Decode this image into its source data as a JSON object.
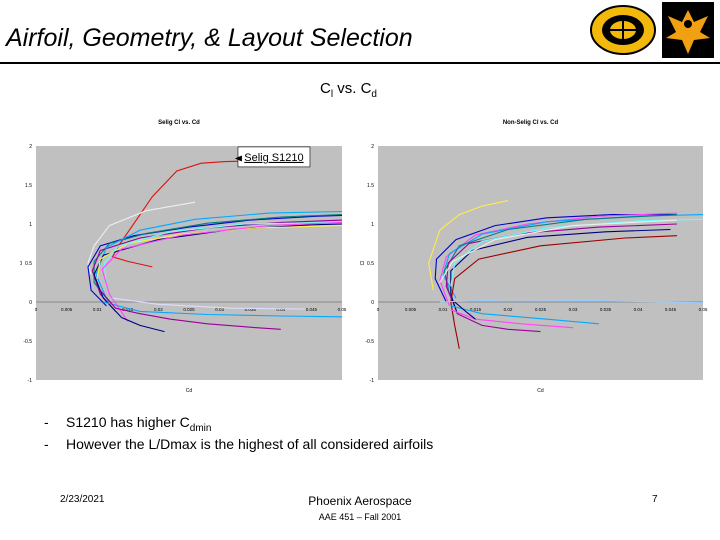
{
  "slide": {
    "title": "Airfoil, Geometry, & Layout Selection",
    "subtitle_main": "C",
    "subtitle_sub1": "l",
    "subtitle_mid": " vs. C",
    "subtitle_sub2": "d",
    "bullets": [
      {
        "dash": "-",
        "pre": "S1210 has higher C",
        "sub": "dmin",
        "post": ""
      },
      {
        "dash": "-",
        "pre": "However the L/Dmax is the highest of all considered airfoils",
        "sub": "",
        "post": ""
      }
    ],
    "footer_date": "2/23/2021",
    "footer_org": "Phoenix Aerospace",
    "footer_course": "AAE 451 – Fall 2001",
    "page_number": "7"
  },
  "chart_data": [
    {
      "type": "line",
      "title": "Selig Cl vs. Cd",
      "xlabel": "Cd",
      "ylabel": "Cl",
      "xlim": [
        0,
        0.05
      ],
      "ylim": [
        -1,
        2
      ],
      "x_ticks": [
        "0",
        "0.005",
        "0.01",
        "0.015",
        "0.02",
        "0.025",
        "0.03",
        "0.035",
        "0.04",
        "0.045",
        "0.05"
      ],
      "y_ticks": [
        "2",
        "1.5",
        "1",
        "0.5",
        "0",
        "-0.5",
        "-1"
      ],
      "annotation": "Selig S1210",
      "background": "#c0c0c0",
      "series": [
        {
          "color": "#dd1111",
          "points": [
            [
              0.019,
              0.45
            ],
            [
              0.015,
              0.52
            ],
            [
              0.0125,
              0.58
            ],
            [
              0.0135,
              0.72
            ],
            [
              0.0155,
              0.95
            ],
            [
              0.019,
              1.35
            ],
            [
              0.023,
              1.68
            ],
            [
              0.027,
              1.78
            ],
            [
              0.031,
              1.8
            ],
            [
              0.036,
              1.81
            ]
          ]
        },
        {
          "color": "#eeeeee",
          "points": [
            [
              0.009,
              0.35
            ],
            [
              0.0085,
              0.5
            ],
            [
              0.0095,
              0.72
            ],
            [
              0.012,
              0.98
            ],
            [
              0.018,
              1.17
            ],
            [
              0.026,
              1.28
            ]
          ]
        },
        {
          "color": "#0000cc",
          "points": [
            [
              0.0115,
              -0.05
            ],
            [
              0.009,
              0.15
            ],
            [
              0.0085,
              0.45
            ],
            [
              0.0105,
              0.72
            ],
            [
              0.016,
              0.85
            ],
            [
              0.025,
              0.96
            ],
            [
              0.035,
              1.05
            ],
            [
              0.046,
              1.1
            ],
            [
              0.05,
              1.11
            ]
          ]
        },
        {
          "color": "#008080",
          "points": [
            [
              0.012,
              0.0
            ],
            [
              0.0095,
              0.25
            ],
            [
              0.0095,
              0.52
            ],
            [
              0.012,
              0.75
            ],
            [
              0.018,
              0.88
            ],
            [
              0.028,
              1.01
            ],
            [
              0.04,
              1.09
            ],
            [
              0.05,
              1.12
            ]
          ]
        },
        {
          "color": "#990099",
          "points": [
            [
              0.013,
              -0.12
            ],
            [
              0.0105,
              0.1
            ],
            [
              0.0092,
              0.4
            ],
            [
              0.0105,
              0.66
            ],
            [
              0.017,
              0.82
            ],
            [
              0.028,
              0.95
            ],
            [
              0.04,
              1.02
            ],
            [
              0.05,
              1.05
            ]
          ]
        },
        {
          "color": "#00aaff",
          "points": [
            [
              0.0115,
              0.05
            ],
            [
              0.0098,
              0.35
            ],
            [
              0.0115,
              0.7
            ],
            [
              0.017,
              0.92
            ],
            [
              0.026,
              1.06
            ],
            [
              0.038,
              1.14
            ],
            [
              0.05,
              1.16
            ]
          ]
        },
        {
          "color": "#000080",
          "points": [
            [
              0.014,
              -0.2
            ],
            [
              0.011,
              0.05
            ],
            [
              0.0095,
              0.35
            ],
            [
              0.011,
              0.6
            ],
            [
              0.02,
              0.8
            ],
            [
              0.032,
              0.93
            ],
            [
              0.045,
              0.99
            ],
            [
              0.05,
              1.0
            ]
          ]
        },
        {
          "color": "#ffee44",
          "points": [
            [
              0.01,
              0.3
            ],
            [
              0.0105,
              0.55
            ],
            [
              0.015,
              0.75
            ],
            [
              0.024,
              0.87
            ],
            [
              0.036,
              0.95
            ],
            [
              0.05,
              0.98
            ]
          ]
        },
        {
          "color": "#66ffff",
          "points": [
            [
              0.0115,
              0.2
            ],
            [
              0.0112,
              0.5
            ],
            [
              0.0135,
              0.72
            ],
            [
              0.022,
              0.9
            ],
            [
              0.034,
              1.0
            ],
            [
              0.05,
              1.02
            ]
          ]
        },
        {
          "color": "#ff44ff",
          "points": [
            [
              0.015,
              -0.25
            ],
            [
              0.012,
              0.1
            ],
            [
              0.0108,
              0.42
            ],
            [
              0.014,
              0.68
            ],
            [
              0.024,
              0.86
            ],
            [
              0.038,
              0.98
            ],
            [
              0.05,
              1.02
            ]
          ]
        },
        {
          "color": "#00aaff",
          "points": [
            [
              0.011,
              0.0
            ],
            [
              0.017,
              -0.12
            ],
            [
              0.028,
              -0.16
            ],
            [
              0.04,
              -0.18
            ],
            [
              0.05,
              -0.19
            ]
          ]
        },
        {
          "color": "#ddddff",
          "points": [
            [
              0.0125,
              0.05
            ],
            [
              0.02,
              -0.03
            ],
            [
              0.032,
              -0.08
            ],
            [
              0.044,
              -0.09
            ]
          ]
        },
        {
          "color": "#990099",
          "points": [
            [
              0.0105,
              0.15
            ],
            [
              0.013,
              -0.08
            ],
            [
              0.017,
              -0.15
            ],
            [
              0.022,
              -0.22
            ],
            [
              0.028,
              -0.28
            ],
            [
              0.036,
              -0.33
            ],
            [
              0.04,
              -0.35
            ]
          ]
        },
        {
          "color": "#000080",
          "points": [
            [
              0.014,
              -0.2
            ],
            [
              0.017,
              -0.3
            ],
            [
              0.021,
              -0.38
            ]
          ]
        }
      ]
    },
    {
      "type": "line",
      "title": "Non-Selig Cl vs. Cd",
      "xlabel": "Cd",
      "ylabel": "Cl",
      "xlim": [
        0,
        0.05
      ],
      "ylim": [
        -1,
        2
      ],
      "x_ticks": [
        "0",
        "0.005",
        "0.01",
        "0.015",
        "0.02",
        "0.025",
        "0.03",
        "0.035",
        "0.04",
        "0.045",
        "0.05"
      ],
      "y_ticks": [
        "2",
        "1.5",
        "1",
        "0.5",
        "0",
        "-0.5",
        "-1"
      ],
      "background": "#c0c0c0",
      "series": [
        {
          "color": "#ffee44",
          "points": [
            [
              0.0085,
              0.15
            ],
            [
              0.0078,
              0.5
            ],
            [
              0.0095,
              0.92
            ],
            [
              0.0125,
              1.12
            ],
            [
              0.016,
              1.23
            ],
            [
              0.02,
              1.3
            ]
          ]
        },
        {
          "color": "#0000cc",
          "points": [
            [
              0.0105,
              0.0
            ],
            [
              0.0088,
              0.3
            ],
            [
              0.009,
              0.55
            ],
            [
              0.012,
              0.8
            ],
            [
              0.018,
              0.98
            ],
            [
              0.026,
              1.08
            ],
            [
              0.036,
              1.12
            ],
            [
              0.046,
              1.12
            ]
          ]
        },
        {
          "color": "#ff44ff",
          "points": [
            [
              0.011,
              -0.05
            ],
            [
              0.0095,
              0.28
            ],
            [
              0.0105,
              0.58
            ],
            [
              0.015,
              0.86
            ],
            [
              0.023,
              1.0
            ],
            [
              0.034,
              1.1
            ],
            [
              0.046,
              1.14
            ]
          ]
        },
        {
          "color": "#00aaff",
          "points": [
            [
              0.012,
              0.05
            ],
            [
              0.01,
              0.35
            ],
            [
              0.011,
              0.62
            ],
            [
              0.016,
              0.87
            ],
            [
              0.026,
              1.03
            ],
            [
              0.04,
              1.1
            ],
            [
              0.05,
              1.12
            ]
          ]
        },
        {
          "color": "#008080",
          "points": [
            [
              0.011,
              0.1
            ],
            [
              0.0102,
              0.4
            ],
            [
              0.0125,
              0.72
            ],
            [
              0.02,
              0.93
            ],
            [
              0.032,
              1.06
            ],
            [
              0.046,
              1.12
            ]
          ]
        },
        {
          "color": "#990099",
          "points": [
            [
              0.012,
              -0.1
            ],
            [
              0.0105,
              0.2
            ],
            [
              0.0108,
              0.5
            ],
            [
              0.014,
              0.75
            ],
            [
              0.022,
              0.88
            ],
            [
              0.034,
              0.96
            ],
            [
              0.046,
              1.0
            ]
          ]
        },
        {
          "color": "#000080",
          "points": [
            [
              0.0122,
              -0.15
            ],
            [
              0.0112,
              0.1
            ],
            [
              0.0112,
              0.4
            ],
            [
              0.0145,
              0.66
            ],
            [
              0.023,
              0.83
            ],
            [
              0.035,
              0.9
            ],
            [
              0.045,
              0.93
            ]
          ]
        },
        {
          "color": "#990000",
          "points": [
            [
              0.0125,
              -0.6
            ],
            [
              0.0118,
              -0.3
            ],
            [
              0.0112,
              0.0
            ],
            [
              0.0118,
              0.3
            ],
            [
              0.0155,
              0.55
            ],
            [
              0.025,
              0.72
            ],
            [
              0.038,
              0.82
            ],
            [
              0.046,
              0.85
            ]
          ]
        },
        {
          "color": "#66ffff",
          "points": [
            [
              0.0112,
              0.2
            ],
            [
              0.0118,
              0.5
            ],
            [
              0.016,
              0.78
            ],
            [
              0.026,
              0.95
            ],
            [
              0.04,
              1.04
            ],
            [
              0.05,
              1.06
            ]
          ]
        },
        {
          "color": "#eeeeee",
          "points": [
            [
              0.0095,
              0.25
            ],
            [
              0.0115,
              0.52
            ],
            [
              0.018,
              0.8
            ],
            [
              0.03,
              0.98
            ],
            [
              0.046,
              1.05
            ]
          ]
        },
        {
          "color": "#99ccff",
          "points": [
            [
              0.0095,
              0.0
            ],
            [
              0.02,
              0.03
            ],
            [
              0.032,
              0.02
            ],
            [
              0.044,
              0.0
            ],
            [
              0.05,
              -0.01
            ]
          ]
        },
        {
          "color": "#ff44ff",
          "points": [
            [
              0.0112,
              -0.1
            ],
            [
              0.015,
              -0.22
            ],
            [
              0.022,
              -0.28
            ],
            [
              0.03,
              -0.33
            ]
          ]
        },
        {
          "color": "#990099",
          "points": [
            [
              0.0122,
              -0.15
            ],
            [
              0.016,
              -0.3
            ],
            [
              0.02,
              -0.35
            ],
            [
              0.025,
              -0.38
            ]
          ]
        },
        {
          "color": "#00aaff",
          "points": [
            [
              0.0112,
              -0.05
            ],
            [
              0.016,
              -0.15
            ],
            [
              0.026,
              -0.22
            ],
            [
              0.034,
              -0.28
            ]
          ]
        },
        {
          "color": "#000080",
          "points": [
            [
              0.0118,
              0.0
            ],
            [
              0.0135,
              -0.12
            ],
            [
              0.015,
              -0.22
            ]
          ]
        }
      ]
    }
  ]
}
